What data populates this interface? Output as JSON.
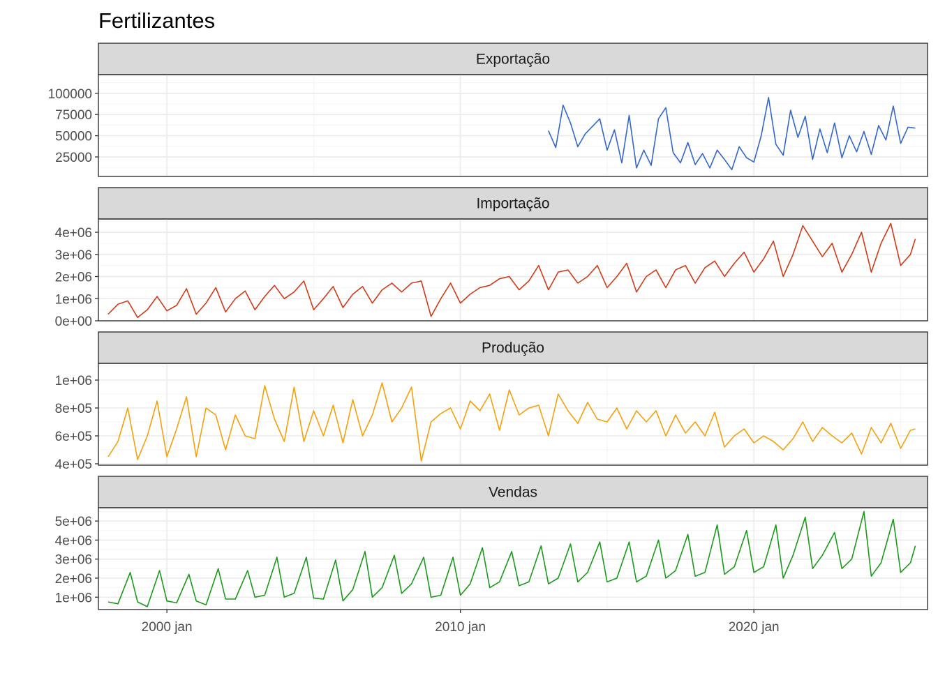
{
  "chart_data": {
    "type": "line",
    "title": "Fertilizantes",
    "xlabel": "",
    "ylabel": "",
    "grid": true,
    "facet_layout": "stacked-rows",
    "x_range": [
      "1997-09",
      "2025-12"
    ],
    "x_ticks": [
      {
        "date": "2000-01",
        "label": "2000 jan"
      },
      {
        "date": "2010-01",
        "label": "2010 jan"
      },
      {
        "date": "2020-01",
        "label": "2020 jan"
      }
    ],
    "panels": [
      {
        "strip": "Exportação",
        "color": "#3366cc",
        "ylim": [
          2000,
          122000
        ],
        "y_ticks": [
          {
            "value": 25000,
            "label": "25000"
          },
          {
            "value": 50000,
            "label": "50000"
          },
          {
            "value": 75000,
            "label": "75000"
          },
          {
            "value": 100000,
            "label": "100000"
          }
        ],
        "x": [
          "2013-01",
          "2013-04",
          "2013-07",
          "2013-10",
          "2014-01",
          "2014-04",
          "2014-07",
          "2014-10",
          "2015-01",
          "2015-04",
          "2015-07",
          "2015-10",
          "2016-01",
          "2016-04",
          "2016-07",
          "2016-10",
          "2017-01",
          "2017-04",
          "2017-07",
          "2017-10",
          "2018-01",
          "2018-04",
          "2018-07",
          "2018-10",
          "2019-01",
          "2019-04",
          "2019-07",
          "2019-10",
          "2020-01",
          "2020-04",
          "2020-07",
          "2020-10",
          "2021-01",
          "2021-04",
          "2021-07",
          "2021-10",
          "2022-01",
          "2022-04",
          "2022-07",
          "2022-10",
          "2023-01",
          "2023-04",
          "2023-07",
          "2023-10",
          "2024-01",
          "2024-04",
          "2024-07",
          "2024-10",
          "2025-01",
          "2025-04",
          "2025-07"
        ],
        "values": [
          56000,
          36000,
          86000,
          65000,
          37000,
          52000,
          61000,
          70000,
          33000,
          57000,
          18000,
          74000,
          12000,
          33000,
          15000,
          70000,
          83000,
          30000,
          18000,
          42000,
          16000,
          29000,
          12000,
          33000,
          22000,
          10000,
          37000,
          24000,
          19000,
          50000,
          95000,
          40000,
          27000,
          80000,
          48000,
          73000,
          22000,
          58000,
          30000,
          65000,
          24000,
          50000,
          31000,
          55000,
          28000,
          62000,
          45000,
          85000,
          41000,
          60000,
          59000
        ]
      },
      {
        "strip": "Importação",
        "color": "#d13a17",
        "ylim": [
          0,
          4600000
        ],
        "y_ticks": [
          {
            "value": 0,
            "label": "0e+00"
          },
          {
            "value": 1000000,
            "label": "1e+06"
          },
          {
            "value": 2000000,
            "label": "2e+06"
          },
          {
            "value": 3000000,
            "label": "3e+06"
          },
          {
            "value": 4000000,
            "label": "4e+06"
          }
        ],
        "x": [
          "1998-01",
          "1998-05",
          "1998-09",
          "1999-01",
          "1999-05",
          "1999-09",
          "2000-01",
          "2000-05",
          "2000-09",
          "2001-01",
          "2001-05",
          "2001-09",
          "2002-01",
          "2002-05",
          "2002-09",
          "2003-01",
          "2003-05",
          "2003-09",
          "2004-01",
          "2004-05",
          "2004-09",
          "2005-01",
          "2005-05",
          "2005-09",
          "2006-01",
          "2006-05",
          "2006-09",
          "2007-01",
          "2007-05",
          "2007-09",
          "2008-01",
          "2008-05",
          "2008-09",
          "2009-01",
          "2009-05",
          "2009-09",
          "2010-01",
          "2010-05",
          "2010-09",
          "2011-01",
          "2011-05",
          "2011-09",
          "2012-01",
          "2012-05",
          "2012-09",
          "2013-01",
          "2013-05",
          "2013-09",
          "2014-01",
          "2014-05",
          "2014-09",
          "2015-01",
          "2015-05",
          "2015-09",
          "2016-01",
          "2016-05",
          "2016-09",
          "2017-01",
          "2017-05",
          "2017-09",
          "2018-01",
          "2018-05",
          "2018-09",
          "2019-01",
          "2019-05",
          "2019-09",
          "2020-01",
          "2020-05",
          "2020-09",
          "2021-01",
          "2021-05",
          "2021-09",
          "2022-01",
          "2022-05",
          "2022-09",
          "2023-01",
          "2023-05",
          "2023-09",
          "2024-01",
          "2024-05",
          "2024-09",
          "2025-01",
          "2025-05",
          "2025-07"
        ],
        "values": [
          300000,
          750000,
          900000,
          150000,
          500000,
          1100000,
          450000,
          700000,
          1450000,
          300000,
          800000,
          1500000,
          400000,
          1000000,
          1350000,
          500000,
          1100000,
          1600000,
          1000000,
          1300000,
          1800000,
          500000,
          1000000,
          1550000,
          600000,
          1200000,
          1550000,
          800000,
          1400000,
          1700000,
          1300000,
          1700000,
          1800000,
          200000,
          1000000,
          1700000,
          800000,
          1200000,
          1500000,
          1600000,
          1900000,
          2000000,
          1400000,
          1800000,
          2500000,
          1400000,
          2200000,
          2300000,
          1700000,
          2000000,
          2500000,
          1500000,
          2000000,
          2600000,
          1300000,
          2000000,
          2300000,
          1500000,
          2300000,
          2500000,
          1700000,
          2400000,
          2700000,
          2000000,
          2600000,
          3100000,
          2200000,
          2800000,
          3600000,
          2000000,
          3000000,
          4300000,
          3600000,
          2900000,
          3500000,
          2200000,
          3000000,
          4000000,
          2200000,
          3500000,
          4400000,
          2500000,
          3000000,
          3700000
        ]
      },
      {
        "strip": "Produção",
        "color": "#f5a00c",
        "ylim": [
          390000,
          1120000
        ],
        "y_ticks": [
          {
            "value": 400000,
            "label": "4e+05"
          },
          {
            "value": 600000,
            "label": "6e+05"
          },
          {
            "value": 800000,
            "label": "8e+05"
          },
          {
            "value": 1000000,
            "label": "1e+06"
          }
        ],
        "x": [
          "1998-01",
          "1998-05",
          "1998-09",
          "1999-01",
          "1999-05",
          "1999-09",
          "2000-01",
          "2000-05",
          "2000-09",
          "2001-01",
          "2001-05",
          "2001-09",
          "2002-01",
          "2002-05",
          "2002-09",
          "2003-01",
          "2003-05",
          "2003-09",
          "2004-01",
          "2004-05",
          "2004-09",
          "2005-01",
          "2005-05",
          "2005-09",
          "2006-01",
          "2006-05",
          "2006-09",
          "2007-01",
          "2007-05",
          "2007-09",
          "2008-01",
          "2008-05",
          "2008-09",
          "2009-01",
          "2009-05",
          "2009-09",
          "2010-01",
          "2010-05",
          "2010-09",
          "2011-01",
          "2011-05",
          "2011-09",
          "2012-01",
          "2012-05",
          "2012-09",
          "2013-01",
          "2013-05",
          "2013-09",
          "2014-01",
          "2014-05",
          "2014-09",
          "2015-01",
          "2015-05",
          "2015-09",
          "2016-01",
          "2016-05",
          "2016-09",
          "2017-01",
          "2017-05",
          "2017-09",
          "2018-01",
          "2018-05",
          "2018-09",
          "2019-01",
          "2019-05",
          "2019-09",
          "2020-01",
          "2020-05",
          "2020-09",
          "2021-01",
          "2021-05",
          "2021-09",
          "2022-01",
          "2022-05",
          "2022-09",
          "2023-01",
          "2023-05",
          "2023-09",
          "2024-01",
          "2024-05",
          "2024-09",
          "2025-01",
          "2025-05",
          "2025-07"
        ],
        "values": [
          450000,
          560000,
          800000,
          430000,
          600000,
          850000,
          450000,
          650000,
          880000,
          450000,
          800000,
          750000,
          500000,
          750000,
          600000,
          580000,
          960000,
          720000,
          560000,
          950000,
          560000,
          780000,
          600000,
          820000,
          550000,
          860000,
          600000,
          750000,
          980000,
          700000,
          800000,
          950000,
          420000,
          700000,
          760000,
          800000,
          650000,
          850000,
          780000,
          900000,
          640000,
          930000,
          750000,
          800000,
          820000,
          600000,
          900000,
          780000,
          690000,
          840000,
          720000,
          700000,
          800000,
          650000,
          780000,
          700000,
          780000,
          600000,
          750000,
          620000,
          700000,
          600000,
          770000,
          520000,
          600000,
          650000,
          550000,
          600000,
          560000,
          500000,
          580000,
          700000,
          560000,
          660000,
          600000,
          550000,
          620000,
          470000,
          660000,
          550000,
          690000,
          510000,
          640000,
          650000
        ]
      },
      {
        "strip": "Vendas",
        "color": "#1a9a1a",
        "ylim": [
          350000,
          5700000
        ],
        "y_ticks": [
          {
            "value": 1000000,
            "label": "1e+06"
          },
          {
            "value": 2000000,
            "label": "2e+06"
          },
          {
            "value": 3000000,
            "label": "3e+06"
          },
          {
            "value": 4000000,
            "label": "4e+06"
          },
          {
            "value": 5000000,
            "label": "5e+06"
          }
        ],
        "x": [
          "1998-01",
          "1998-05",
          "1998-10",
          "1999-01",
          "1999-05",
          "1999-10",
          "2000-01",
          "2000-05",
          "2000-10",
          "2001-01",
          "2001-05",
          "2001-10",
          "2002-01",
          "2002-05",
          "2002-10",
          "2003-01",
          "2003-05",
          "2003-10",
          "2004-01",
          "2004-05",
          "2004-10",
          "2005-01",
          "2005-05",
          "2005-10",
          "2006-01",
          "2006-05",
          "2006-10",
          "2007-01",
          "2007-05",
          "2007-10",
          "2008-01",
          "2008-05",
          "2008-10",
          "2009-01",
          "2009-05",
          "2009-10",
          "2010-01",
          "2010-05",
          "2010-10",
          "2011-01",
          "2011-05",
          "2011-10",
          "2012-01",
          "2012-05",
          "2012-10",
          "2013-01",
          "2013-05",
          "2013-10",
          "2014-01",
          "2014-05",
          "2014-10",
          "2015-01",
          "2015-05",
          "2015-10",
          "2016-01",
          "2016-05",
          "2016-10",
          "2017-01",
          "2017-05",
          "2017-10",
          "2018-01",
          "2018-05",
          "2018-10",
          "2019-01",
          "2019-05",
          "2019-10",
          "2020-01",
          "2020-05",
          "2020-10",
          "2021-01",
          "2021-05",
          "2021-10",
          "2022-01",
          "2022-05",
          "2022-10",
          "2023-01",
          "2023-05",
          "2023-10",
          "2024-01",
          "2024-05",
          "2024-10",
          "2025-01",
          "2025-05",
          "2025-07"
        ],
        "values": [
          750000,
          650000,
          2300000,
          750000,
          500000,
          2400000,
          800000,
          700000,
          2200000,
          800000,
          600000,
          2500000,
          900000,
          900000,
          2400000,
          1000000,
          1100000,
          3100000,
          1000000,
          1200000,
          3100000,
          950000,
          900000,
          2950000,
          800000,
          1400000,
          3400000,
          1000000,
          1500000,
          3200000,
          1200000,
          1700000,
          3100000,
          1000000,
          1100000,
          3100000,
          1100000,
          1700000,
          3600000,
          1500000,
          1800000,
          3400000,
          1600000,
          1800000,
          3700000,
          1700000,
          2000000,
          3800000,
          1800000,
          2300000,
          3900000,
          1800000,
          2000000,
          3900000,
          1800000,
          2100000,
          4000000,
          2000000,
          2400000,
          4300000,
          2100000,
          2300000,
          4800000,
          2200000,
          2600000,
          4500000,
          2300000,
          2600000,
          4800000,
          2000000,
          3200000,
          5200000,
          2500000,
          3200000,
          4400000,
          2500000,
          3000000,
          5500000,
          2100000,
          2800000,
          5100000,
          2300000,
          2800000,
          3700000
        ]
      }
    ]
  }
}
